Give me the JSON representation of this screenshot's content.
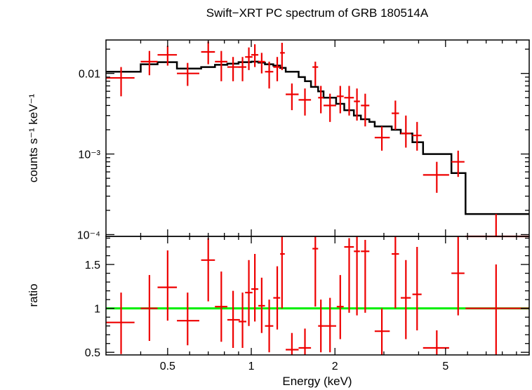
{
  "chart_data": {
    "type": "scatter",
    "title": "Swift−XRT PC spectrum of GRB 180514A",
    "xlabel": "Energy (keV)",
    "xscale": "log",
    "xlim": [
      0.3,
      10
    ],
    "x_ticks": [
      {
        "value": 0.5,
        "label": "0.5"
      },
      {
        "value": 1,
        "label": "1"
      },
      {
        "value": 2,
        "label": "2"
      },
      {
        "value": 5,
        "label": "5"
      }
    ],
    "colors": {
      "data": "#ee0000",
      "model": "#000000",
      "unity": "#00ee00"
    },
    "top_panel": {
      "ylabel": "counts s⁻¹ keV⁻¹",
      "yscale": "log",
      "ylim": [
        9.5e-05,
        0.026
      ],
      "y_ticks": [
        {
          "value": 0.01,
          "label": "0.01"
        },
        {
          "value": 0.001,
          "label": "10⁻³"
        },
        {
          "value": 0.0001,
          "label": "10⁻⁴"
        }
      ],
      "data": [
        {
          "x": 0.34,
          "xlo": 0.3,
          "xhi": 0.38,
          "y": 0.0088,
          "ylo": 0.0052,
          "yhi": 0.012
        },
        {
          "x": 0.43,
          "xlo": 0.4,
          "xhi": 0.46,
          "y": 0.014,
          "ylo": 0.0095,
          "yhi": 0.019
        },
        {
          "x": 0.5,
          "xlo": 0.46,
          "xhi": 0.54,
          "y": 0.017,
          "ylo": 0.0125,
          "yhi": 0.022
        },
        {
          "x": 0.59,
          "xlo": 0.54,
          "xhi": 0.65,
          "y": 0.01,
          "ylo": 0.007,
          "yhi": 0.0135
        },
        {
          "x": 0.7,
          "xlo": 0.66,
          "xhi": 0.74,
          "y": 0.0185,
          "ylo": 0.013,
          "yhi": 0.025
        },
        {
          "x": 0.78,
          "xlo": 0.74,
          "xhi": 0.82,
          "y": 0.014,
          "ylo": 0.008,
          "yhi": 0.019
        },
        {
          "x": 0.86,
          "xlo": 0.82,
          "xhi": 0.91,
          "y": 0.012,
          "ylo": 0.008,
          "yhi": 0.016
        },
        {
          "x": 0.93,
          "xlo": 0.9,
          "xhi": 0.96,
          "y": 0.012,
          "ylo": 0.008,
          "yhi": 0.016
        },
        {
          "x": 0.98,
          "xlo": 0.95,
          "xhi": 1.01,
          "y": 0.016,
          "ylo": 0.011,
          "yhi": 0.021
        },
        {
          "x": 1.03,
          "xlo": 1.0,
          "xhi": 1.06,
          "y": 0.017,
          "ylo": 0.012,
          "yhi": 0.023
        },
        {
          "x": 1.09,
          "xlo": 1.06,
          "xhi": 1.12,
          "y": 0.014,
          "ylo": 0.01,
          "yhi": 0.018
        },
        {
          "x": 1.16,
          "xlo": 1.12,
          "xhi": 1.2,
          "y": 0.0105,
          "ylo": 0.0065,
          "yhi": 0.014
        },
        {
          "x": 1.24,
          "xlo": 1.2,
          "xhi": 1.27,
          "y": 0.012,
          "ylo": 0.008,
          "yhi": 0.016
        },
        {
          "x": 1.29,
          "xlo": 1.27,
          "xhi": 1.32,
          "y": 0.018,
          "ylo": 0.011,
          "yhi": 0.024
        },
        {
          "x": 1.4,
          "xlo": 1.33,
          "xhi": 1.48,
          "y": 0.0055,
          "ylo": 0.0035,
          "yhi": 0.0075
        },
        {
          "x": 1.56,
          "xlo": 1.48,
          "xhi": 1.64,
          "y": 0.0047,
          "ylo": 0.003,
          "yhi": 0.0065
        },
        {
          "x": 1.7,
          "xlo": 1.66,
          "xhi": 1.74,
          "y": 0.012,
          "ylo": 0.007,
          "yhi": 0.014
        },
        {
          "x": 1.78,
          "xlo": 1.74,
          "xhi": 1.82,
          "y": 0.005,
          "ylo": 0.0032,
          "yhi": 0.007
        },
        {
          "x": 1.92,
          "xlo": 1.82,
          "xhi": 2.02,
          "y": 0.004,
          "ylo": 0.0025,
          "yhi": 0.0056
        },
        {
          "x": 2.09,
          "xlo": 2.03,
          "xhi": 2.15,
          "y": 0.0052,
          "ylo": 0.0032,
          "yhi": 0.007
        },
        {
          "x": 2.25,
          "xlo": 2.16,
          "xhi": 2.34,
          "y": 0.005,
          "ylo": 0.003,
          "yhi": 0.007
        },
        {
          "x": 2.4,
          "xlo": 2.34,
          "xhi": 2.46,
          "y": 0.0045,
          "ylo": 0.0026,
          "yhi": 0.0065
        },
        {
          "x": 2.57,
          "xlo": 2.48,
          "xhi": 2.66,
          "y": 0.004,
          "ylo": 0.0022,
          "yhi": 0.0056
        },
        {
          "x": 2.95,
          "xlo": 2.78,
          "xhi": 3.15,
          "y": 0.0016,
          "ylo": 0.0011,
          "yhi": 0.0022
        },
        {
          "x": 3.3,
          "xlo": 3.2,
          "xhi": 3.4,
          "y": 0.0032,
          "ylo": 0.002,
          "yhi": 0.0046
        },
        {
          "x": 3.6,
          "xlo": 3.45,
          "xhi": 3.75,
          "y": 0.0018,
          "ylo": 0.0012,
          "yhi": 0.003
        },
        {
          "x": 3.95,
          "xlo": 3.8,
          "xhi": 4.1,
          "y": 0.0017,
          "ylo": 0.0011,
          "yhi": 0.0025
        },
        {
          "x": 4.65,
          "xlo": 4.15,
          "xhi": 5.15,
          "y": 0.00055,
          "ylo": 0.00033,
          "yhi": 0.0008
        },
        {
          "x": 5.55,
          "xlo": 5.25,
          "xhi": 5.85,
          "y": 0.0008,
          "ylo": 0.00052,
          "yhi": 0.0011
        },
        {
          "x": 7.6,
          "xlo": 5.9,
          "xhi": 10.0,
          "y": 9.5e-05,
          "ylo": 9.5e-05,
          "yhi": 0.00018
        }
      ],
      "model_steps": [
        {
          "x0": 0.3,
          "x1": 0.4,
          "y": 0.0105
        },
        {
          "x0": 0.4,
          "x1": 0.46,
          "y": 0.013
        },
        {
          "x0": 0.46,
          "x1": 0.54,
          "y": 0.0138
        },
        {
          "x0": 0.54,
          "x1": 0.66,
          "y": 0.0115
        },
        {
          "x0": 0.66,
          "x1": 0.74,
          "y": 0.012
        },
        {
          "x0": 0.74,
          "x1": 0.82,
          "y": 0.0128
        },
        {
          "x0": 0.82,
          "x1": 0.9,
          "y": 0.0132
        },
        {
          "x0": 0.9,
          "x1": 1.0,
          "y": 0.0138
        },
        {
          "x0": 1.0,
          "x1": 1.06,
          "y": 0.014
        },
        {
          "x0": 1.06,
          "x1": 1.12,
          "y": 0.0136
        },
        {
          "x0": 1.12,
          "x1": 1.2,
          "y": 0.013
        },
        {
          "x0": 1.2,
          "x1": 1.27,
          "y": 0.0125
        },
        {
          "x0": 1.27,
          "x1": 1.33,
          "y": 0.0117
        },
        {
          "x0": 1.33,
          "x1": 1.48,
          "y": 0.0105
        },
        {
          "x0": 1.48,
          "x1": 1.56,
          "y": 0.009
        },
        {
          "x0": 1.56,
          "x1": 1.64,
          "y": 0.008
        },
        {
          "x0": 1.64,
          "x1": 1.74,
          "y": 0.0068
        },
        {
          "x0": 1.74,
          "x1": 1.82,
          "y": 0.006
        },
        {
          "x0": 1.82,
          "x1": 2.02,
          "y": 0.005
        },
        {
          "x0": 2.02,
          "x1": 2.16,
          "y": 0.0042
        },
        {
          "x0": 2.16,
          "x1": 2.34,
          "y": 0.0035
        },
        {
          "x0": 2.34,
          "x1": 2.48,
          "y": 0.003
        },
        {
          "x0": 2.48,
          "x1": 2.66,
          "y": 0.0027
        },
        {
          "x0": 2.66,
          "x1": 2.78,
          "y": 0.0025
        },
        {
          "x0": 2.78,
          "x1": 3.2,
          "y": 0.0022
        },
        {
          "x0": 3.2,
          "x1": 3.45,
          "y": 0.002
        },
        {
          "x0": 3.45,
          "x1": 3.8,
          "y": 0.0018
        },
        {
          "x0": 3.8,
          "x1": 4.15,
          "y": 0.0014
        },
        {
          "x0": 4.15,
          "x1": 5.25,
          "y": 0.001
        },
        {
          "x0": 5.25,
          "x1": 5.9,
          "y": 0.00058
        },
        {
          "x0": 5.9,
          "x1": 10.0,
          "y": 0.00018
        }
      ]
    },
    "bottom_panel": {
      "ylabel": "ratio",
      "yscale": "linear",
      "ylim": [
        0.47,
        1.82
      ],
      "y_ticks": [
        {
          "value": 0.5,
          "label": "0.5"
        },
        {
          "value": 1,
          "label": "1"
        },
        {
          "value": 1.5,
          "label": "1.5"
        }
      ],
      "unity_line": 1,
      "data": [
        {
          "x": 0.34,
          "xlo": 0.3,
          "xhi": 0.38,
          "y": 0.84,
          "ylo": 0.48,
          "yhi": 1.18
        },
        {
          "x": 0.43,
          "xlo": 0.4,
          "xhi": 0.46,
          "y": 1.0,
          "ylo": 0.63,
          "yhi": 1.38
        },
        {
          "x": 0.5,
          "xlo": 0.46,
          "xhi": 0.54,
          "y": 1.24,
          "ylo": 0.86,
          "yhi": 1.66
        },
        {
          "x": 0.59,
          "xlo": 0.54,
          "xhi": 0.65,
          "y": 0.86,
          "ylo": 0.58,
          "yhi": 1.18
        },
        {
          "x": 0.7,
          "xlo": 0.66,
          "xhi": 0.74,
          "y": 1.55,
          "ylo": 1.08,
          "yhi": 1.8
        },
        {
          "x": 0.78,
          "xlo": 0.74,
          "xhi": 0.82,
          "y": 1.02,
          "ylo": 0.62,
          "yhi": 1.42
        },
        {
          "x": 0.86,
          "xlo": 0.82,
          "xhi": 0.91,
          "y": 0.87,
          "ylo": 0.55,
          "yhi": 1.2
        },
        {
          "x": 0.93,
          "xlo": 0.9,
          "xhi": 0.96,
          "y": 0.85,
          "ylo": 0.55,
          "yhi": 1.18
        },
        {
          "x": 0.98,
          "xlo": 0.95,
          "xhi": 1.01,
          "y": 1.18,
          "ylo": 0.8,
          "yhi": 1.55
        },
        {
          "x": 1.03,
          "xlo": 1.0,
          "xhi": 1.06,
          "y": 1.22,
          "ylo": 0.85,
          "yhi": 1.62
        },
        {
          "x": 1.09,
          "xlo": 1.06,
          "xhi": 1.12,
          "y": 1.03,
          "ylo": 0.72,
          "yhi": 1.35
        },
        {
          "x": 1.16,
          "xlo": 1.12,
          "xhi": 1.2,
          "y": 0.8,
          "ylo": 0.5,
          "yhi": 1.1
        },
        {
          "x": 1.24,
          "xlo": 1.2,
          "xhi": 1.27,
          "y": 1.12,
          "ylo": 0.76,
          "yhi": 1.48
        },
        {
          "x": 1.29,
          "xlo": 1.27,
          "xhi": 1.32,
          "y": 1.62,
          "ylo": 1.0,
          "yhi": 1.82
        },
        {
          "x": 1.4,
          "xlo": 1.33,
          "xhi": 1.48,
          "y": 0.53,
          "ylo": 0.47,
          "yhi": 0.72
        },
        {
          "x": 1.56,
          "xlo": 1.48,
          "xhi": 1.64,
          "y": 0.55,
          "ylo": 0.47,
          "yhi": 0.77
        },
        {
          "x": 1.7,
          "xlo": 1.66,
          "xhi": 1.74,
          "y": 1.68,
          "ylo": 1.02,
          "yhi": 1.82
        },
        {
          "x": 1.78,
          "xlo": 1.74,
          "xhi": 1.82,
          "y": 0.8,
          "ylo": 0.5,
          "yhi": 1.1
        },
        {
          "x": 1.92,
          "xlo": 1.82,
          "xhi": 2.02,
          "y": 0.8,
          "ylo": 0.5,
          "yhi": 1.12
        },
        {
          "x": 2.09,
          "xlo": 2.03,
          "xhi": 2.15,
          "y": 1.02,
          "ylo": 0.65,
          "yhi": 1.38
        },
        {
          "x": 2.25,
          "xlo": 2.16,
          "xhi": 2.34,
          "y": 1.7,
          "ylo": 0.95,
          "yhi": 1.8
        },
        {
          "x": 2.4,
          "xlo": 2.34,
          "xhi": 2.46,
          "y": 1.65,
          "ylo": 0.92,
          "yhi": 1.82
        },
        {
          "x": 2.57,
          "xlo": 2.48,
          "xhi": 2.66,
          "y": 1.65,
          "ylo": 0.95,
          "yhi": 1.78
        },
        {
          "x": 2.95,
          "xlo": 2.78,
          "xhi": 3.15,
          "y": 0.74,
          "ylo": 0.47,
          "yhi": 1.0
        },
        {
          "x": 3.3,
          "xlo": 3.2,
          "xhi": 3.4,
          "y": 1.62,
          "ylo": 1.0,
          "yhi": 1.82
        },
        {
          "x": 3.6,
          "xlo": 3.45,
          "xhi": 3.75,
          "y": 1.12,
          "ylo": 0.65,
          "yhi": 1.55
        },
        {
          "x": 3.95,
          "xlo": 3.8,
          "xhi": 4.1,
          "y": 1.16,
          "ylo": 0.75,
          "yhi": 1.7
        },
        {
          "x": 4.65,
          "xlo": 4.15,
          "xhi": 5.15,
          "y": 0.55,
          "ylo": 0.47,
          "yhi": 0.75
        },
        {
          "x": 5.55,
          "xlo": 5.25,
          "xhi": 5.85,
          "y": 1.4,
          "ylo": 0.92,
          "yhi": 1.82
        },
        {
          "x": 7.6,
          "xlo": 5.9,
          "xhi": 10.0,
          "y": 1.0,
          "ylo": 0.47,
          "yhi": 1.5
        }
      ]
    }
  }
}
